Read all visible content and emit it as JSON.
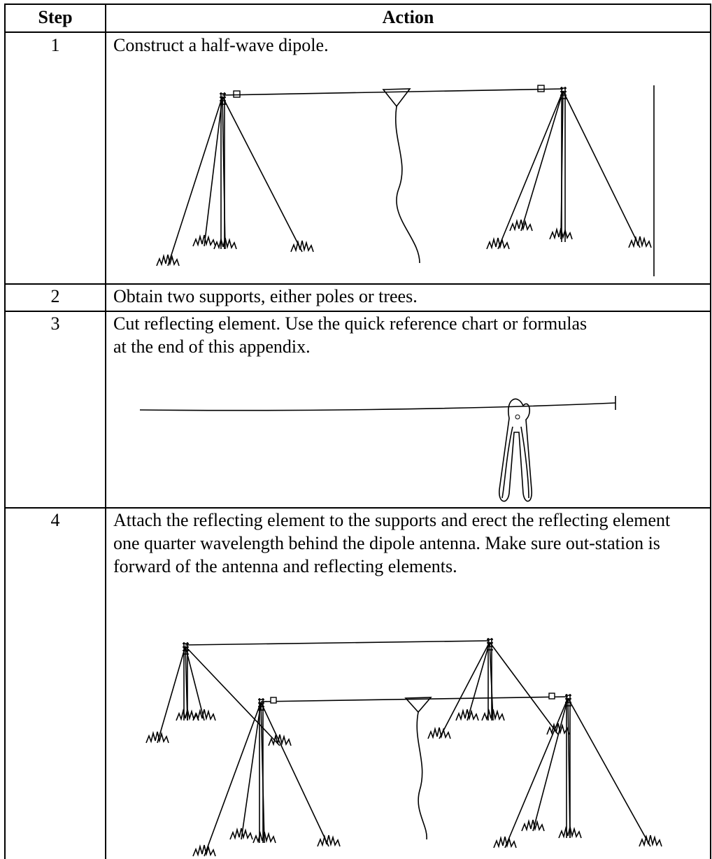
{
  "table": {
    "header": [
      "Step",
      "Action"
    ],
    "rows": [
      [
        "1",
        "Construct a half-wave dipole."
      ],
      [
        "2",
        "Obtain two supports, either poles or trees."
      ],
      [
        "3",
        "Cut reflecting element.  Use the quick reference chart or formulas at the end of this appendix."
      ],
      [
        "4",
        "Attach the reflecting element to the supports and erect the reflecting element one quarter wavelength behind the dipole antenna.  Make sure out-station is forward of the antenna and reflecting elements."
      ]
    ]
  }
}
